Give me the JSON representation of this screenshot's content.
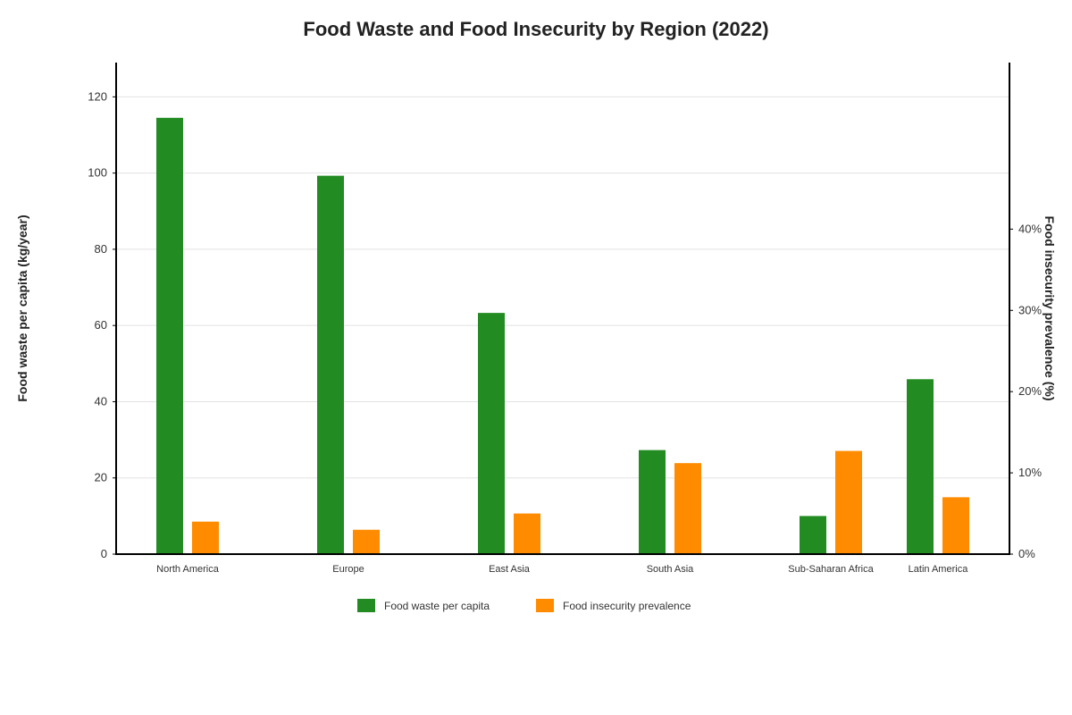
{
  "chart_data": {
    "type": "bar",
    "title": "Food Waste and Food Insecurity by Region (2022)",
    "ylabel": "Food waste per capita (kg/year)",
    "y2label": "Food insecurity prevalence (%)",
    "categories": [
      "North America",
      "Europe",
      "East Asia",
      "South Asia",
      "Sub-Saharan Africa",
      "Latin America"
    ],
    "series": [
      {
        "name": "Food waste per capita",
        "axis": "left",
        "color": "#228B22",
        "values": [
          114.5,
          99.3,
          63.3,
          27.3,
          10.0,
          45.9
        ]
      },
      {
        "name": "Food insecurity prevalence",
        "axis": "right",
        "color": "#FF8C00",
        "values": [
          4.0,
          3.0,
          5.0,
          11.2,
          12.7,
          7.0
        ]
      }
    ],
    "ylim": [
      0,
      129
    ],
    "yticks": [
      0,
      20,
      40,
      60,
      80,
      100,
      120
    ],
    "y2lim": [
      0,
      60.5
    ],
    "y2ticks": [
      0,
      10,
      20,
      30,
      40
    ],
    "y2tick_labels": [
      "0%",
      "10%",
      "20%",
      "30%",
      "40%"
    ],
    "grid": true,
    "legend": "bottom-center"
  }
}
